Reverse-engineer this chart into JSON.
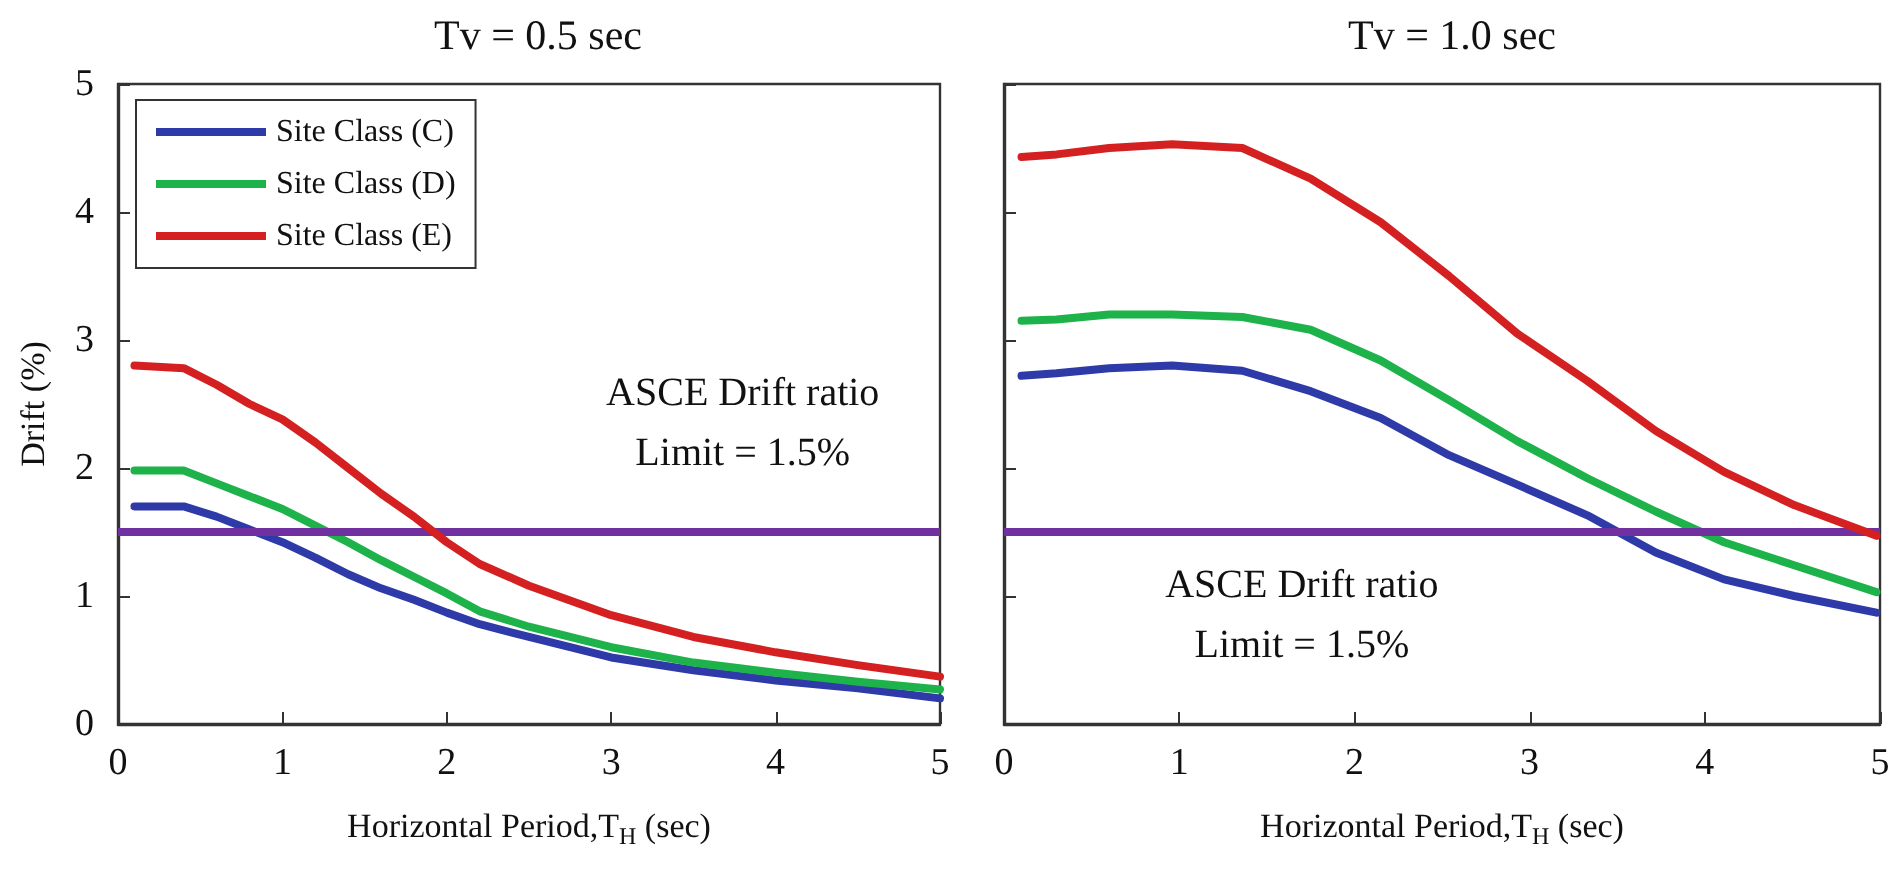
{
  "chart_data": [
    {
      "type": "line",
      "title": "Tv = 0.5 sec",
      "xlabel": "Horizontal Period,T$_{H}$ (sec)",
      "ylabel": "Drift (%)",
      "xlim": [
        0,
        5
      ],
      "xticks": [
        0,
        1,
        2,
        3,
        4,
        5
      ],
      "ylim": [
        0,
        5
      ],
      "yticks": [
        0,
        1,
        2,
        3,
        4,
        5
      ],
      "grid": false,
      "legend": "top left",
      "line_style": "solid",
      "marker": "none",
      "series": [
        {
          "name": "Site Class (C)",
          "color": "#2e3aa8",
          "x": [
            0.1,
            0.4,
            0.6,
            0.8,
            1.0,
            1.2,
            1.4,
            1.6,
            1.8,
            2.0,
            2.2,
            2.5,
            3.0,
            3.5,
            4.0,
            4.5,
            5.0
          ],
          "values": [
            1.7,
            1.7,
            1.62,
            1.52,
            1.42,
            1.3,
            1.17,
            1.06,
            0.97,
            0.87,
            0.78,
            0.68,
            0.52,
            0.42,
            0.34,
            0.28,
            0.2
          ]
        },
        {
          "name": "Site Class (D)",
          "color": "#1db34a",
          "x": [
            0.1,
            0.4,
            0.6,
            0.8,
            1.0,
            1.2,
            1.4,
            1.6,
            1.8,
            2.0,
            2.2,
            2.5,
            3.0,
            3.5,
            4.0,
            4.5,
            5.0
          ],
          "values": [
            1.98,
            1.98,
            1.88,
            1.78,
            1.68,
            1.55,
            1.42,
            1.28,
            1.15,
            1.02,
            0.88,
            0.76,
            0.6,
            0.48,
            0.4,
            0.33,
            0.27
          ]
        },
        {
          "name": "Site Class (E)",
          "color": "#d42020",
          "x": [
            0.1,
            0.4,
            0.6,
            0.8,
            1.0,
            1.2,
            1.4,
            1.6,
            1.8,
            2.0,
            2.2,
            2.5,
            3.0,
            3.5,
            4.0,
            4.5,
            5.0
          ],
          "values": [
            2.8,
            2.78,
            2.65,
            2.5,
            2.38,
            2.2,
            2.0,
            1.8,
            1.62,
            1.42,
            1.25,
            1.08,
            0.85,
            0.68,
            0.56,
            0.46,
            0.37
          ]
        }
      ],
      "ref_lines": [
        {
          "axis": "y",
          "value": 1.5,
          "color": "#7030a0"
        }
      ],
      "annotations": [
        "ASCE Drift ratio",
        "Limit = 1.5%"
      ]
    },
    {
      "type": "line",
      "title": "Tv = 1.0 sec",
      "xlabel": "Horizontal Period,T$_{H}$ (sec)",
      "xlim": [
        0,
        5
      ],
      "xticks": [
        0,
        1,
        2,
        3,
        4,
        5
      ],
      "ylim": [
        0,
        5
      ],
      "yticks": [
        0,
        1,
        2,
        3,
        4,
        5
      ],
      "tick_labels": "x",
      "grid": false,
      "line_style": "solid",
      "marker": "none",
      "series": [
        {
          "color": "#2e3aa8",
          "x": [
            0.1,
            0.3,
            0.6,
            0.96,
            1.36,
            1.75,
            2.15,
            2.54,
            2.93,
            3.33,
            3.72,
            4.11,
            4.51,
            4.98
          ],
          "values": [
            2.72,
            2.74,
            2.78,
            2.8,
            2.76,
            2.6,
            2.39,
            2.1,
            1.87,
            1.63,
            1.34,
            1.13,
            1.0,
            0.87
          ]
        },
        {
          "color": "#1db34a",
          "x": [
            0.1,
            0.3,
            0.6,
            0.96,
            1.36,
            1.75,
            2.15,
            2.54,
            2.93,
            3.33,
            3.72,
            4.11,
            4.51,
            4.98
          ],
          "values": [
            3.15,
            3.16,
            3.2,
            3.2,
            3.18,
            3.08,
            2.84,
            2.53,
            2.21,
            1.92,
            1.66,
            1.42,
            1.24,
            1.03
          ]
        },
        {
          "color": "#d42020",
          "x": [
            0.1,
            0.3,
            0.6,
            0.96,
            1.36,
            1.75,
            2.15,
            2.54,
            2.93,
            3.33,
            3.72,
            4.11,
            4.51,
            4.98
          ],
          "values": [
            4.43,
            4.45,
            4.5,
            4.53,
            4.5,
            4.26,
            3.92,
            3.5,
            3.05,
            2.68,
            2.29,
            1.97,
            1.71,
            1.47
          ]
        }
      ],
      "ref_lines": [
        {
          "axis": "y",
          "value": 1.5,
          "color": "#7030a0"
        }
      ],
      "annotations": [
        "ASCE Drift ratio",
        "Limit = 1.5%"
      ]
    }
  ]
}
